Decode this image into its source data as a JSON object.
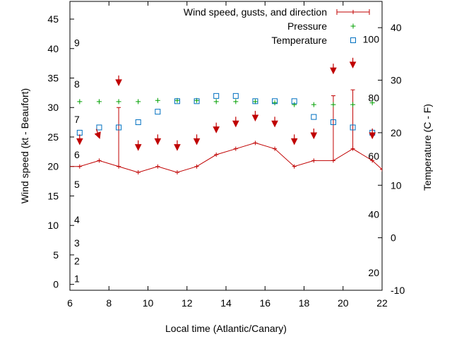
{
  "chart_data": {
    "type": "line",
    "xlabel": "Local time (Atlantic/Canary)",
    "ylabel_left": "Wind speed (kt - Beaufort)",
    "ylabel_right": "Temperature (C - F)",
    "xlim": [
      6,
      22
    ],
    "ylim_left": [
      -1,
      48
    ],
    "ylim_right": [
      -10,
      45
    ],
    "x_ticks": [
      6,
      8,
      10,
      12,
      14,
      16,
      18,
      20,
      22
    ],
    "y_left_ticks": [
      0,
      5,
      10,
      15,
      20,
      25,
      30,
      35,
      40,
      45
    ],
    "y_right_ticks": [
      -10,
      0,
      10,
      20,
      30,
      40
    ],
    "beaufort_labels": [
      {
        "label": "1",
        "kt": 1
      },
      {
        "label": "2",
        "kt": 4
      },
      {
        "label": "3",
        "kt": 7
      },
      {
        "label": "4",
        "kt": 11
      },
      {
        "label": "5",
        "kt": 17
      },
      {
        "label": "6",
        "kt": 22
      },
      {
        "label": "7",
        "kt": 28
      },
      {
        "label": "8",
        "kt": 34
      },
      {
        "label": "9",
        "kt": 41
      }
    ],
    "fahrenheit_labels": [
      {
        "label": "20",
        "celsius": -6.67
      },
      {
        "label": "40",
        "celsius": 4.44
      },
      {
        "label": "60",
        "celsius": 15.56
      },
      {
        "label": "80",
        "celsius": 26.67
      },
      {
        "label": "100",
        "celsius": 37.78
      }
    ],
    "legend": [
      {
        "label": "Wind speed, gusts, and direction",
        "color": "#c00000"
      },
      {
        "label": "Pressure",
        "color": "#00a000"
      },
      {
        "label": "Temperature",
        "color": "#0070c0"
      }
    ],
    "legend_position": "top-right",
    "series": [
      {
        "name": "Wind speed, gusts, and direction",
        "x": [
          5.5,
          6.5,
          7.5,
          8.5,
          9.5,
          10.5,
          11.5,
          12.5,
          13.5,
          14.5,
          15.5,
          16.5,
          17.5,
          18.5,
          19.5,
          20.5,
          21.5,
          22
        ],
        "values": [
          20,
          20,
          21,
          20,
          19,
          20,
          19,
          20,
          22,
          23,
          24,
          23,
          20,
          21,
          21,
          23,
          21,
          19.5
        ]
      },
      {
        "name": "Gusts",
        "x": [
          8.5,
          19.5,
          20.5
        ],
        "low": [
          20,
          21,
          23
        ],
        "high": [
          30,
          32,
          33
        ]
      },
      {
        "name": "Pressure",
        "x": [
          6.5,
          7.5,
          8.5,
          9.5,
          10.5,
          11.5,
          12.5,
          13.5,
          14.5,
          15.5,
          16.5,
          17.5,
          18.5,
          19.5,
          20.5,
          21.5
        ],
        "values": [
          31,
          31,
          31,
          31,
          31.2,
          31.2,
          31.2,
          31,
          31,
          31,
          30.8,
          30.5,
          30.5,
          30.5,
          30.5,
          30.8
        ]
      },
      {
        "name": "Temperature",
        "x": [
          6.5,
          7.5,
          8.5,
          9.5,
          10.5,
          11.5,
          12.5,
          13.5,
          14.5,
          15.5,
          16.5,
          17.5,
          18.5,
          19.5,
          20.5,
          21.5
        ],
        "values": [
          20,
          21,
          21,
          22,
          24,
          26,
          26,
          27,
          27,
          26,
          26,
          26,
          23,
          22,
          21,
          20
        ]
      },
      {
        "name": "Direction",
        "x": [
          6.5,
          7.5,
          8.5,
          9.5,
          10.5,
          11.5,
          12.5,
          13.5,
          14.5,
          15.5,
          16.5,
          17.5,
          18.5,
          19.5,
          20.5,
          21.5
        ],
        "y": [
          24,
          25,
          34,
          23,
          24,
          23,
          24,
          26,
          27,
          28,
          27,
          24,
          25,
          36,
          37,
          25
        ],
        "angle_deg": [
          0,
          20,
          0,
          0,
          0,
          0,
          0,
          0,
          0,
          0,
          0,
          0,
          0,
          0,
          0,
          0
        ]
      }
    ]
  }
}
